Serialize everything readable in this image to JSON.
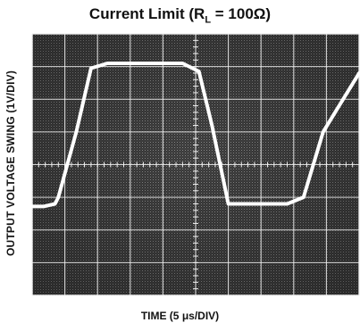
{
  "chart_data": {
    "type": "line",
    "title_main": "Current Limit (R",
    "title_sub": "L",
    "title_rest": " = 100Ω)",
    "xlabel": "TIME (5 μs/DIV)",
    "ylabel": "OUTPUT VOLTAGE SWING (1V/DIV)",
    "x_divisions": 10,
    "y_divisions": 8,
    "grid": true,
    "series": [
      {
        "x": [
          0,
          0.35,
          0.7,
          0.8,
          1.35,
          1.8,
          2.3,
          4.6,
          5.1,
          5.5,
          6.0,
          7.8,
          8.3,
          8.9,
          10
        ],
        "y": [
          -1.28,
          -1.28,
          -1.2,
          -1.0,
          1.0,
          2.95,
          3.1,
          3.1,
          2.85,
          1.2,
          -1.2,
          -1.2,
          -1.0,
          1.0,
          2.8
        ]
      }
    ],
    "colors": {
      "screen": "#2b2b2b",
      "grid": "#f2f2f2",
      "trace": "#ffffff"
    }
  }
}
